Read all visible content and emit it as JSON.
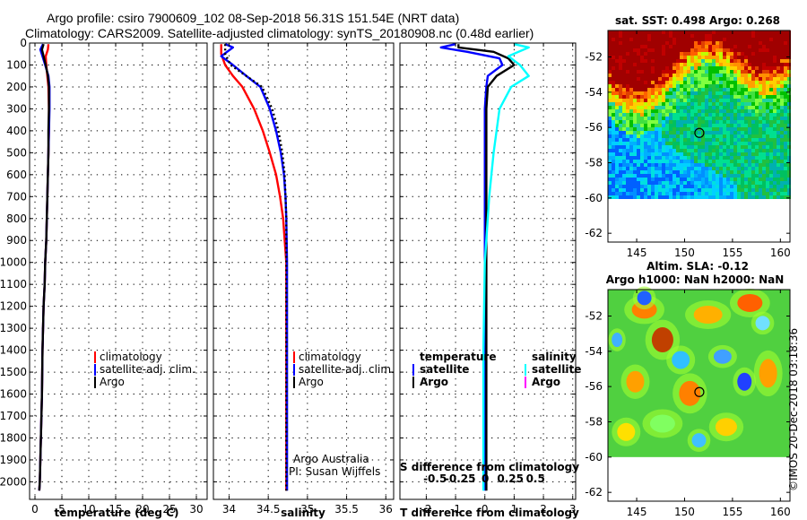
{
  "title": {
    "line1": "Argo profile: csiro 7900609_102 08-Sep-2018 56.31S 151.54E (NRT data)",
    "line2": "Climatology: CARS2009. Satellite-adjusted climatology: synTS_20180908.nc (0.48d earlier)"
  },
  "colors": {
    "climatology": "#ff0000",
    "satellite": "#0000ff",
    "argo": "#000000",
    "salinity_satellite": "#00ffff",
    "salinity_argo": "#ff00ff"
  },
  "chart_data": [
    {
      "type": "line",
      "id": "temperature",
      "xlabel": "temperature (deg C)",
      "xlim": [
        -1,
        32
      ],
      "ylim": [
        0,
        2080
      ],
      "yticks": [
        0,
        100,
        200,
        300,
        400,
        500,
        600,
        700,
        800,
        900,
        1000,
        1100,
        1200,
        1300,
        1400,
        1500,
        1600,
        1700,
        1800,
        1900,
        2000
      ],
      "xticks": [
        0,
        5,
        10,
        15,
        20,
        25,
        30
      ],
      "legend": [
        "climatology",
        "satellite-adj. clim.",
        "Argo"
      ],
      "series": [
        {
          "name": "climatology",
          "color": "#ff0000",
          "x": [
            2.5,
            2.4,
            2.0,
            2.1,
            2.3,
            2.5,
            2.6,
            2.6,
            2.5,
            2.4,
            2.3,
            2.2,
            2.1,
            1.9,
            1.8,
            1.6,
            1.4,
            1.3,
            1.1,
            1.0,
            0.9,
            0.8
          ],
          "y": [
            5,
            30,
            60,
            100,
            150,
            200,
            300,
            400,
            500,
            600,
            700,
            800,
            900,
            1000,
            1100,
            1200,
            1400,
            1600,
            1800,
            1900,
            2000,
            2040
          ]
        },
        {
          "name": "satellite-adj. clim.",
          "color": "#0000ff",
          "x": [
            1.5,
            1.0,
            1.4,
            1.9,
            2.5,
            2.7,
            2.7,
            2.6,
            2.5,
            2.4,
            2.3,
            2.2,
            2.1,
            1.9,
            1.8,
            1.6,
            1.4,
            1.3,
            1.1,
            1.0,
            0.9,
            0.8
          ],
          "y": [
            5,
            30,
            60,
            100,
            150,
            200,
            300,
            400,
            500,
            600,
            700,
            800,
            900,
            1000,
            1100,
            1200,
            1400,
            1600,
            1800,
            1900,
            2000,
            2040
          ]
        },
        {
          "name": "Argo",
          "color": "#000000",
          "x": [
            1.6,
            1.3,
            1.6,
            2.0,
            2.4,
            2.6,
            2.6,
            2.5,
            2.5,
            2.4,
            2.3,
            2.2,
            2.1,
            1.9,
            1.8,
            1.6,
            1.4,
            1.3,
            1.1,
            1.0,
            0.9,
            0.8
          ],
          "y": [
            5,
            30,
            60,
            100,
            150,
            200,
            300,
            400,
            500,
            600,
            700,
            800,
            900,
            1000,
            1100,
            1200,
            1400,
            1600,
            1800,
            1900,
            2000,
            2040
          ]
        }
      ]
    },
    {
      "type": "line",
      "id": "salinity",
      "xlabel": "salinity",
      "xlim": [
        33.8,
        36.1
      ],
      "ylim": [
        0,
        2080
      ],
      "xticks": [
        34,
        34.5,
        35,
        35.5,
        36
      ],
      "xticklabels": [
        "34",
        "34.5",
        "35",
        "35.5",
        "36"
      ],
      "legend": [
        "climatology",
        "satellite-adj. clim.",
        "Argo"
      ],
      "credit": [
        "Argo Australia",
        "PI: Susan Wijffels"
      ],
      "series": [
        {
          "name": "climatology",
          "color": "#ff0000",
          "x": [
            33.9,
            33.9,
            33.95,
            34.05,
            34.17,
            34.32,
            34.43,
            34.52,
            34.6,
            34.65,
            34.69,
            34.71,
            34.73,
            34.73,
            34.73,
            34.73,
            34.73
          ],
          "y": [
            5,
            50,
            100,
            150,
            200,
            300,
            400,
            500,
            600,
            700,
            800,
            900,
            1000,
            1200,
            1400,
            1800,
            2040
          ]
        },
        {
          "name": "satellite-adj. clim.",
          "color": "#0000ff",
          "x": [
            33.95,
            34.05,
            33.9,
            34.05,
            34.22,
            34.4,
            34.52,
            34.6,
            34.66,
            34.7,
            34.72,
            34.73,
            34.74,
            34.74,
            34.74,
            34.74,
            34.74
          ],
          "y": [
            5,
            20,
            60,
            100,
            150,
            200,
            300,
            400,
            500,
            600,
            700,
            800,
            1000,
            1200,
            1400,
            1800,
            2040
          ]
        },
        {
          "name": "Argo",
          "color": "#000000",
          "x": [
            33.95,
            33.95,
            34.02,
            34.22,
            34.42,
            34.55,
            34.63,
            34.68,
            34.71,
            34.72,
            34.73,
            34.73,
            34.73,
            34.73,
            34.73
          ],
          "y": [
            5,
            50,
            100,
            150,
            200,
            300,
            400,
            500,
            600,
            700,
            800,
            1000,
            1200,
            1600,
            2040
          ]
        }
      ]
    },
    {
      "type": "line",
      "id": "difference",
      "xlabel": "T difference from climatology",
      "xlabel_top": "S difference from climatology",
      "xlim": [
        -2.9,
        3.1
      ],
      "ylim": [
        0,
        2080
      ],
      "xticks": [
        -2,
        -1,
        0,
        1,
        2,
        3
      ],
      "xticks_top": [
        -0.5,
        -0.25,
        0,
        0.25,
        0.5
      ],
      "xticklabels_top": [
        "-0.5",
        "-0.25",
        "0",
        "0.25",
        "0.5"
      ],
      "legend_left_title": "temperature",
      "legend_right_title": "salinity",
      "legend_left": [
        "satellite",
        "Argo"
      ],
      "legend_right": [
        "satellite",
        "Argo"
      ],
      "series": [
        {
          "name": "T satellite",
          "color": "#0000ff",
          "x": [
            -1.0,
            -1.5,
            -0.6,
            0.5,
            0.6,
            0.1,
            0.05,
            0.0,
            0.0,
            0.0,
            0.0,
            0.0,
            0.0,
            0.0
          ],
          "y": [
            5,
            20,
            40,
            70,
            100,
            150,
            200,
            300,
            500,
            800,
            1000,
            1400,
            1800,
            2040
          ]
        },
        {
          "name": "T Argo",
          "color": "#000000",
          "x": [
            -0.9,
            -0.9,
            0.3,
            0.8,
            1.0,
            0.4,
            0.1,
            0.05,
            0.05,
            0.05,
            0.05,
            0.05,
            0.05,
            0.05
          ],
          "y": [
            5,
            20,
            40,
            70,
            100,
            150,
            200,
            300,
            500,
            800,
            1000,
            1400,
            1800,
            2040
          ]
        },
        {
          "name": "S satellite",
          "color": "#00ffff",
          "x": [
            1.0,
            1.5,
            0.8,
            1.2,
            1.5,
            0.9,
            0.5,
            0.4,
            0.3,
            0.15,
            0.0,
            -0.05,
            -0.05,
            -0.05
          ],
          "y": [
            5,
            20,
            60,
            100,
            150,
            200,
            300,
            400,
            500,
            700,
            1000,
            1400,
            1800,
            2040
          ]
        }
      ]
    },
    {
      "type": "heatmap",
      "id": "sst_map",
      "title": "sat. SST: 0.498 Argo: 0.268",
      "xlim": [
        142,
        161
      ],
      "ylim": [
        -62.5,
        -50.5
      ],
      "xticks": [
        145,
        150,
        155,
        160
      ],
      "yticks": [
        -52,
        -54,
        -56,
        -58,
        -60,
        -62
      ],
      "marker": {
        "lon": 151.54,
        "lat": -56.31
      }
    },
    {
      "type": "heatmap",
      "id": "sla_map",
      "title": "Altim. SLA: -0.12",
      "subtitle": "Argo h1000: NaN h2000: NaN",
      "xlim": [
        142,
        161
      ],
      "ylim": [
        -62.5,
        -50.5
      ],
      "xticks": [
        145,
        150,
        155,
        160
      ],
      "yticks": [
        -52,
        -54,
        -56,
        -58,
        -60,
        -62
      ],
      "marker": {
        "lon": 151.54,
        "lat": -56.31
      }
    }
  ],
  "watermark": "©IMOS 20-Dec-2018 03:18:36"
}
